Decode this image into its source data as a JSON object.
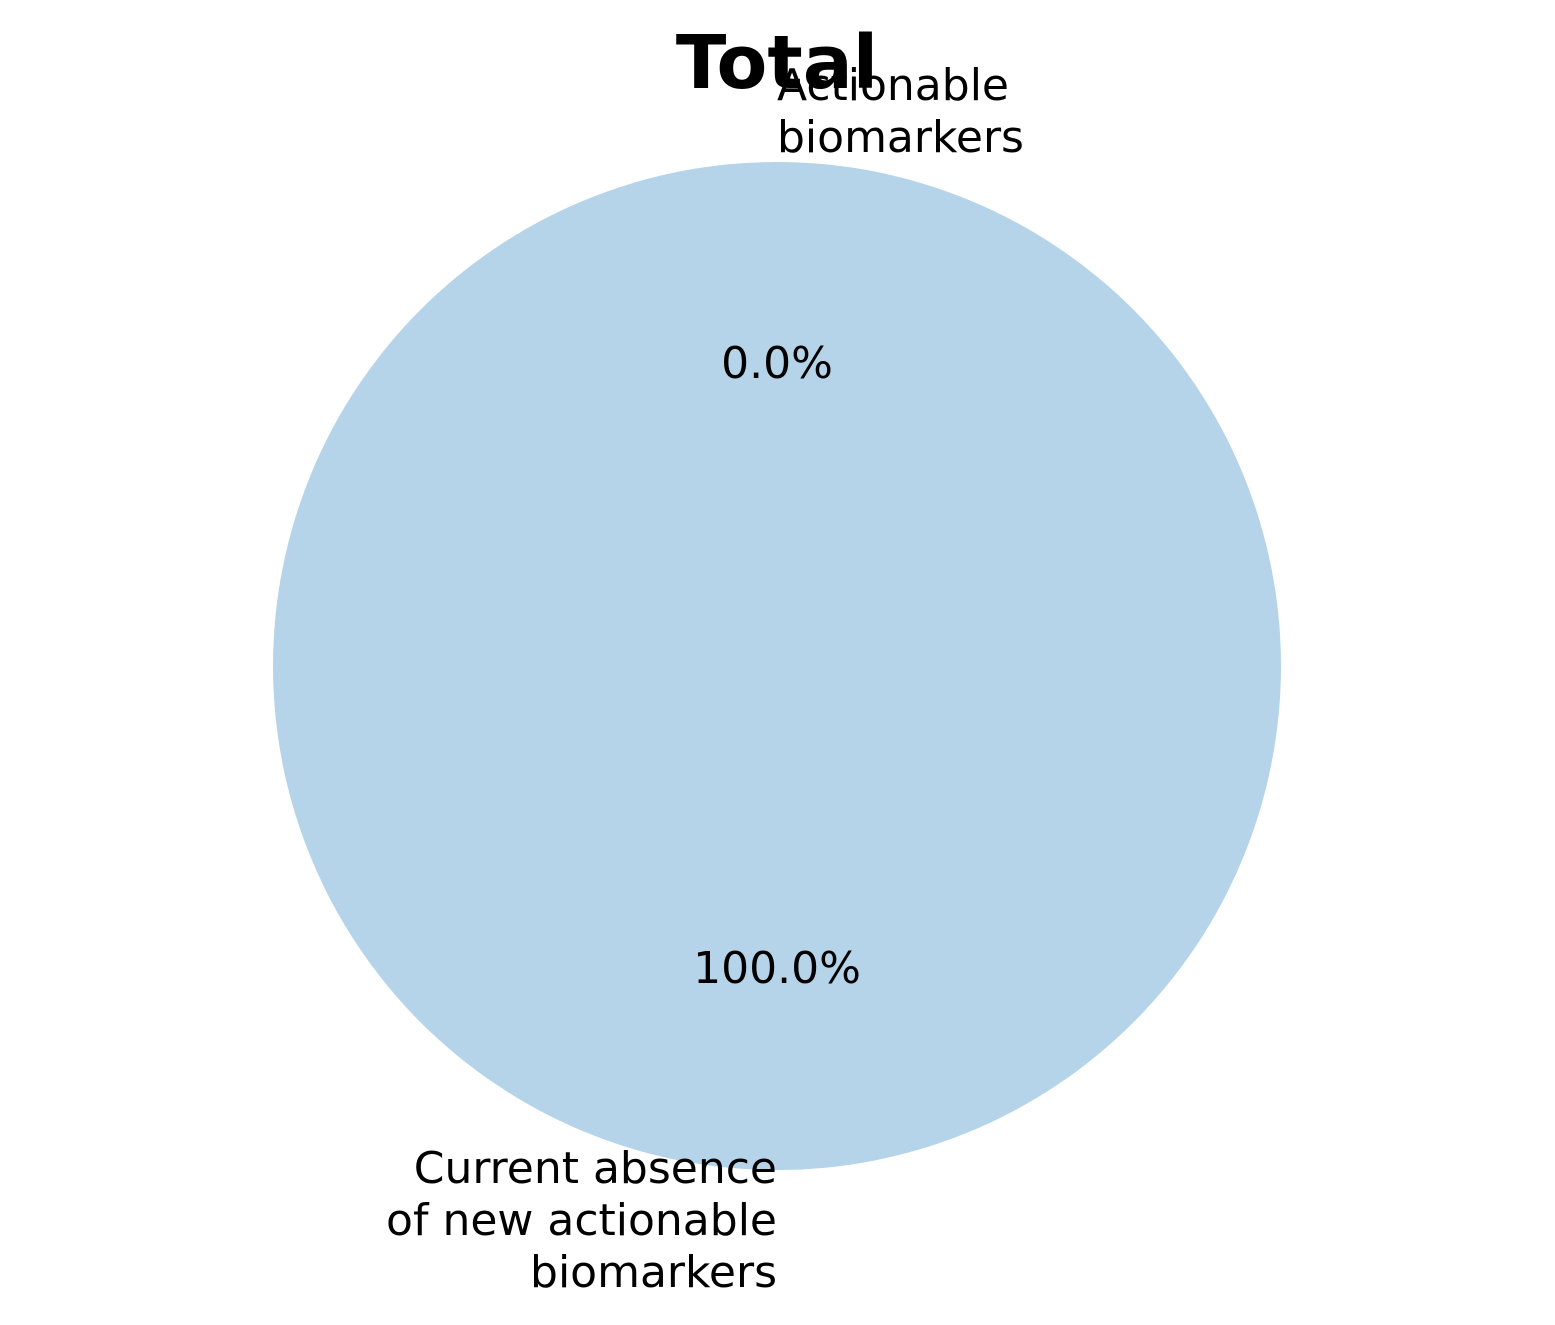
{
  "chart_data": {
    "type": "pie",
    "title": "Total",
    "slices": [
      {
        "label": "Actionable\nbiomarkers",
        "value": 0.0,
        "pct_label": "0.0%",
        "color": "#b5d4e9"
      },
      {
        "label": "Current absence\nof new actionable\nbiomarkers",
        "value": 100.0,
        "pct_label": "100.0%",
        "color": "#b5d4e9"
      }
    ],
    "start_angle_deg": 90,
    "direction": "counterclockwise"
  }
}
